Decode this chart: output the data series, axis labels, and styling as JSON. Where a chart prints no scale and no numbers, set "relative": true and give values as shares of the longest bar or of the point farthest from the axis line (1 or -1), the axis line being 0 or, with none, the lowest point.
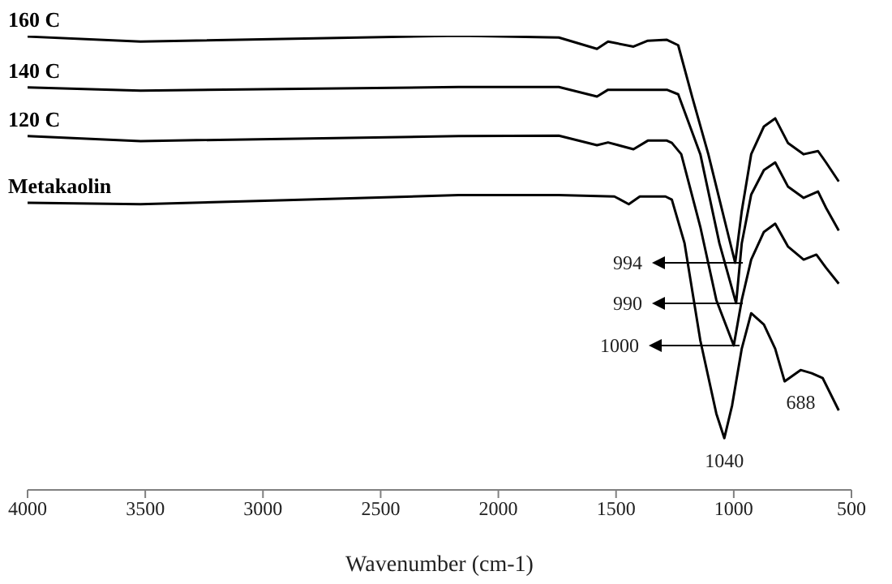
{
  "chart_data": {
    "type": "line",
    "relative": true,
    "xlabel": "Wavenumber (cm-1)",
    "xlim": [
      4000,
      500
    ],
    "xticks": [
      4000,
      3500,
      3000,
      2500,
      2000,
      1500,
      1000,
      500
    ],
    "series": [
      {
        "name": "160 C",
        "color": "#000000",
        "x": [
          4000,
          3520,
          2169,
          1743,
          1581,
          1534,
          1426,
          1365,
          1284,
          1236,
          1176,
          1108,
          1040,
          994,
          966,
          926,
          872,
          824,
          770,
          703,
          642,
          608,
          554
        ],
        "values": [
          0.998,
          0.987,
          1.0,
          0.996,
          0.971,
          0.987,
          0.976,
          0.989,
          0.991,
          0.979,
          0.864,
          0.739,
          0.596,
          0.5,
          0.614,
          0.739,
          0.8,
          0.818,
          0.764,
          0.739,
          0.746,
          0.721,
          0.679
        ]
      },
      {
        "name": "140 C",
        "color": "#000000",
        "x": [
          4000,
          3520,
          2169,
          1743,
          1581,
          1534,
          1284,
          1236,
          1142,
          1061,
          990,
          966,
          926,
          872,
          824,
          770,
          703,
          642,
          608,
          554
        ],
        "values": [
          0.886,
          0.879,
          0.887,
          0.887,
          0.866,
          0.881,
          0.881,
          0.871,
          0.739,
          0.543,
          0.411,
          0.543,
          0.65,
          0.704,
          0.721,
          0.668,
          0.643,
          0.657,
          0.621,
          0.571
        ]
      },
      {
        "name": "120 C",
        "color": "#000000",
        "x": [
          4000,
          3520,
          2169,
          1743,
          1581,
          1534,
          1426,
          1365,
          1284,
          1263,
          1223,
          1142,
          1074,
          1000,
          966,
          926,
          872,
          824,
          770,
          703,
          649,
          608,
          554
        ],
        "values": [
          0.779,
          0.768,
          0.779,
          0.78,
          0.759,
          0.765,
          0.75,
          0.769,
          0.769,
          0.764,
          0.739,
          0.579,
          0.418,
          0.318,
          0.418,
          0.507,
          0.568,
          0.586,
          0.536,
          0.507,
          0.518,
          0.489,
          0.454
        ]
      },
      {
        "name": "Metakaolin",
        "color": "#000000",
        "x": [
          4000,
          3520,
          2899,
          2169,
          1743,
          1507,
          1446,
          1399,
          1290,
          1263,
          1209,
          1142,
          1074,
          1040,
          1007,
          966,
          926,
          872,
          824,
          784,
          716,
          669,
          622,
          554
        ],
        "values": [
          0.632,
          0.629,
          0.638,
          0.649,
          0.649,
          0.646,
          0.629,
          0.646,
          0.646,
          0.639,
          0.543,
          0.329,
          0.168,
          0.114,
          0.186,
          0.311,
          0.389,
          0.364,
          0.311,
          0.239,
          0.264,
          0.257,
          0.246,
          0.175
        ]
      }
    ],
    "annotations": [
      "994",
      "990",
      "1000",
      {
        "text": "1040",
        "x": 1040,
        "y": 0.114
      },
      {
        "text": "688",
        "x": 688,
        "y": 0.257
      }
    ]
  }
}
